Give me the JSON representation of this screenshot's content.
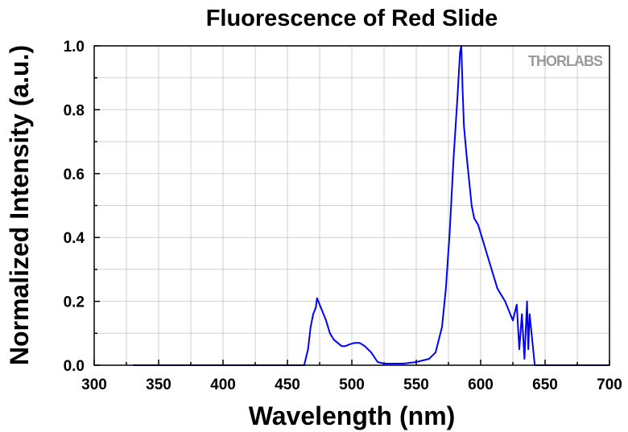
{
  "chart_data": {
    "type": "line",
    "title": "Fluorescence of Red Slide",
    "xlabel": "Wavelength (nm)",
    "ylabel": "Normalized Intensity (a.u.)",
    "xlim": [
      300,
      700
    ],
    "ylim": [
      0,
      1.0
    ],
    "xticks": [
      "300",
      "350",
      "400",
      "450",
      "500",
      "550",
      "600",
      "650",
      "700"
    ],
    "yticks": [
      "0.0",
      "0.2",
      "0.4",
      "0.6",
      "0.8",
      "1.0"
    ],
    "grid": true,
    "logo": "THORLABS",
    "series": [
      {
        "color": "#0000ff",
        "x": [
          330,
          360,
          400,
          440,
          463,
          466,
          468,
          470,
          472,
          473,
          475,
          477,
          480,
          483,
          486,
          489,
          492,
          495,
          498,
          502,
          506,
          510,
          515,
          520,
          525,
          530,
          540,
          550,
          560,
          565,
          570,
          573,
          576,
          579,
          582,
          584,
          585,
          586,
          587,
          589,
          591,
          593,
          595,
          598,
          601,
          604,
          607,
          610,
          613,
          616,
          619,
          622,
          625,
          628,
          630,
          632,
          634,
          636,
          637,
          638,
          640,
          642,
          645,
          660,
          700
        ],
        "y": [
          0.0,
          0.0,
          0.0,
          0.0,
          0.0,
          0.05,
          0.12,
          0.16,
          0.18,
          0.21,
          0.19,
          0.17,
          0.14,
          0.1,
          0.08,
          0.07,
          0.06,
          0.06,
          0.065,
          0.07,
          0.07,
          0.06,
          0.04,
          0.01,
          0.005,
          0.005,
          0.005,
          0.01,
          0.02,
          0.04,
          0.12,
          0.24,
          0.42,
          0.65,
          0.84,
          0.98,
          1.0,
          0.86,
          0.75,
          0.66,
          0.58,
          0.5,
          0.46,
          0.44,
          0.4,
          0.36,
          0.32,
          0.28,
          0.24,
          0.22,
          0.2,
          0.17,
          0.14,
          0.19,
          0.05,
          0.16,
          0.02,
          0.2,
          0.05,
          0.16,
          0.08,
          0.0,
          0.0,
          0.0,
          0.0
        ]
      }
    ]
  }
}
